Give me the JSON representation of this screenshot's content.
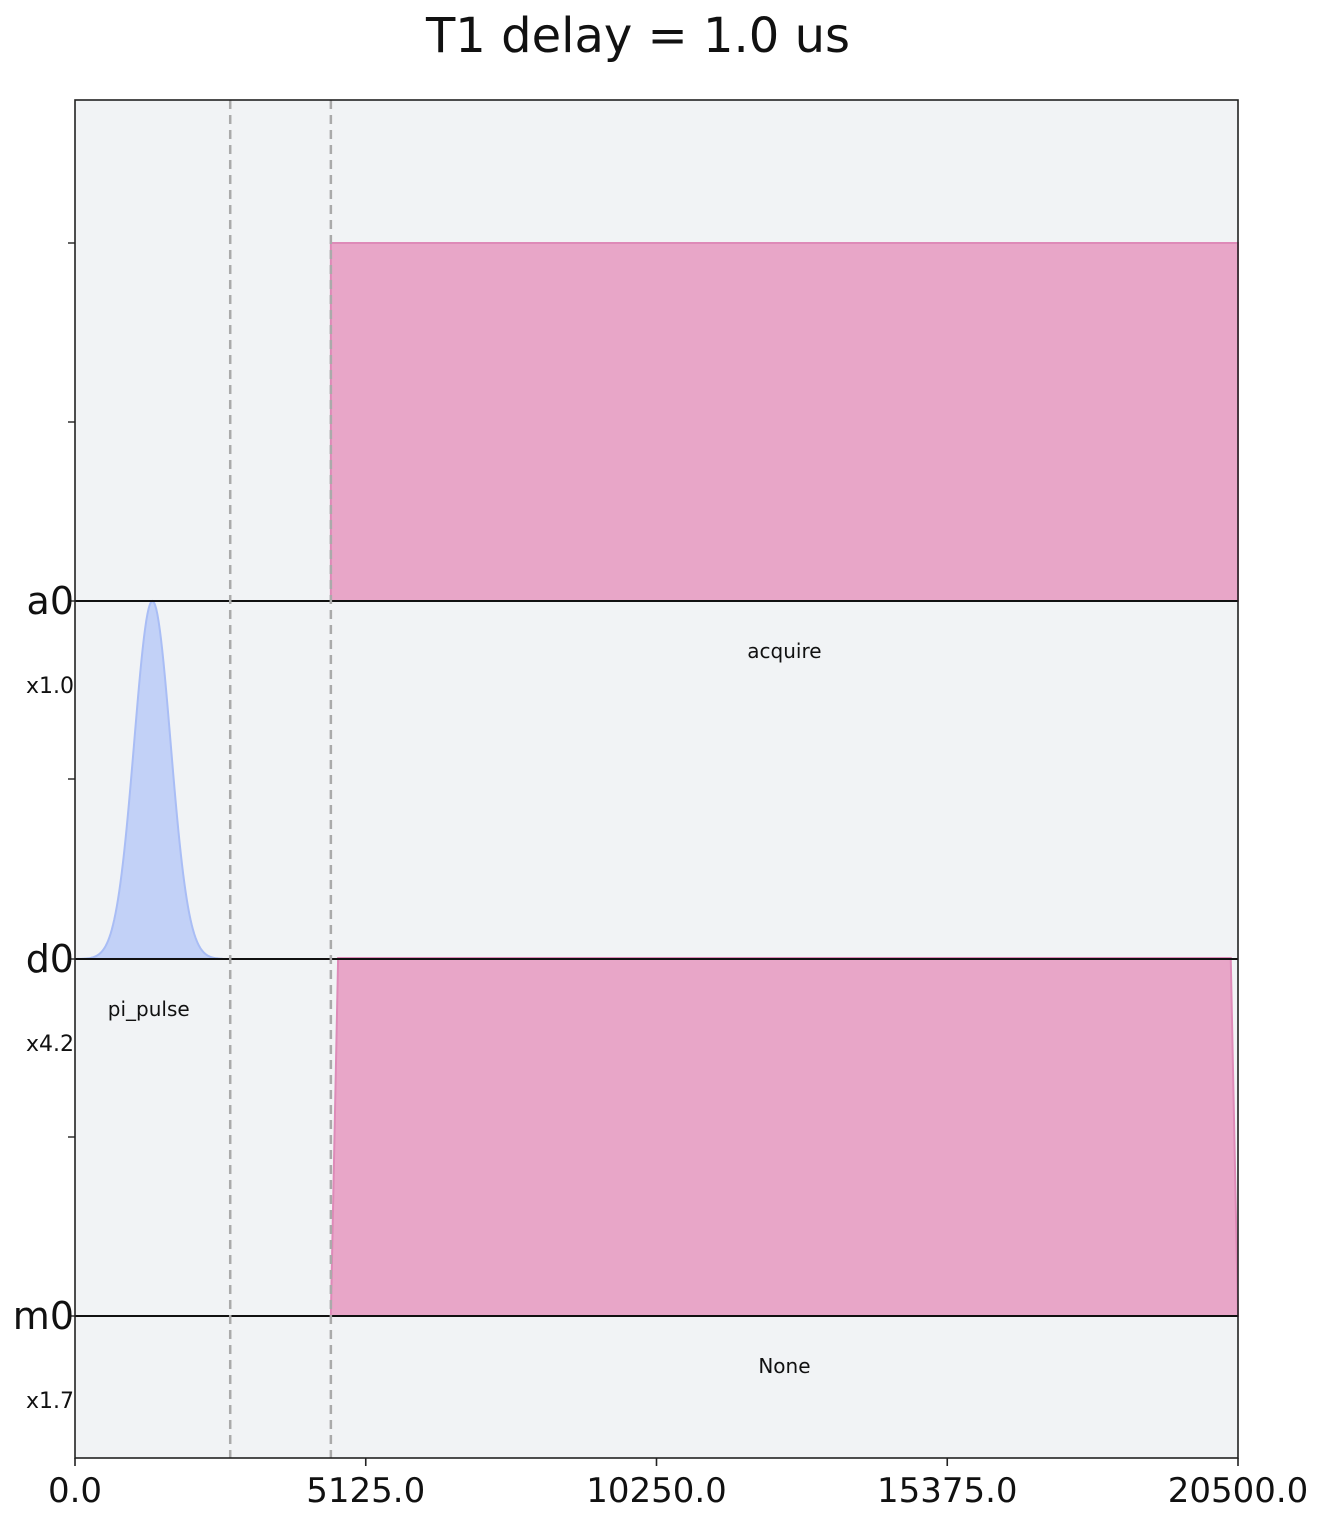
{
  "chart_data": {
    "type": "area",
    "title": "T1 delay = 1.0 us",
    "xlabel": "",
    "ylabel": "",
    "xlim": [
      0,
      20500
    ],
    "x_ticks": [
      "0.0",
      "5125.0",
      "10250.0",
      "15375.0",
      "20500.0"
    ],
    "x_tick_values": [
      0,
      5125,
      10250,
      15375,
      20500
    ],
    "barriers": [
      2736,
      4510
    ],
    "channels": [
      {
        "name": "a0",
        "scale": "x1.0",
        "color": "#e8a6c8",
        "pulses": [
          {
            "label": "acquire",
            "shape": "box",
            "start": 4510,
            "end": 20500,
            "amplitude": 1.0
          }
        ]
      },
      {
        "name": "d0",
        "scale": "x4.2",
        "color": "#c2d1f7",
        "pulses": [
          {
            "label": "pi_pulse",
            "shape": "gaussian",
            "start": 0,
            "end": 2600,
            "center": 1364,
            "sigma": 320,
            "amplitude": 1.0
          }
        ]
      },
      {
        "name": "m0",
        "scale": "x1.7",
        "color": "#e8a6c8",
        "pulses": [
          {
            "label": "None",
            "shape": "gaussian_square",
            "start": 4510,
            "end": 20500,
            "amplitude": 1.0
          }
        ]
      }
    ],
    "grid": false,
    "background": "#f1f3f5",
    "barrier_color": "#aaaaaa"
  }
}
